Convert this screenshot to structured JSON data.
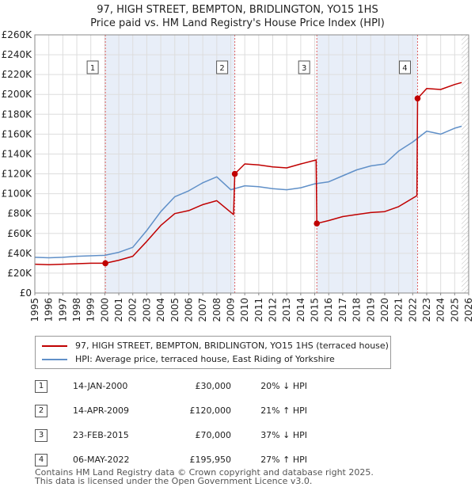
{
  "title_line1": "97, HIGH STREET, BEMPTON, BRIDLINGTON, YO15 1HS",
  "title_line2": "Price paid vs. HM Land Registry's House Price Index (HPI)",
  "chart_data": {
    "type": "line",
    "title": "97, HIGH STREET, BEMPTON, BRIDLINGTON, YO15 1HS — Price paid vs. HM Land Registry's House Price Index (HPI)",
    "xlabel": "",
    "ylabel": "",
    "xlim": [
      1995,
      2026
    ],
    "ylim": [
      0,
      260000
    ],
    "x_ticks": [
      "1995",
      "1996",
      "1997",
      "1998",
      "1999",
      "2000",
      "2001",
      "2002",
      "2003",
      "2004",
      "2005",
      "2006",
      "2007",
      "2008",
      "2009",
      "2010",
      "2011",
      "2012",
      "2013",
      "2014",
      "2015",
      "2016",
      "2017",
      "2018",
      "2019",
      "2020",
      "2021",
      "2022",
      "2023",
      "2024",
      "2025",
      "2026"
    ],
    "y_ticks": [
      {
        "value": 0,
        "label": "£0"
      },
      {
        "value": 20000,
        "label": "£20K"
      },
      {
        "value": 40000,
        "label": "£40K"
      },
      {
        "value": 60000,
        "label": "£60K"
      },
      {
        "value": 80000,
        "label": "£80K"
      },
      {
        "value": 100000,
        "label": "£100K"
      },
      {
        "value": 120000,
        "label": "£120K"
      },
      {
        "value": 140000,
        "label": "£140K"
      },
      {
        "value": 160000,
        "label": "£160K"
      },
      {
        "value": 180000,
        "label": "£180K"
      },
      {
        "value": 200000,
        "label": "£200K"
      },
      {
        "value": 220000,
        "label": "£220K"
      },
      {
        "value": 240000,
        "label": "£240K"
      },
      {
        "value": 260000,
        "label": "£260K"
      }
    ],
    "grid": true,
    "shaded_spans": [
      [
        2000.04,
        2009.29
      ],
      [
        2015.15,
        2022.35
      ]
    ],
    "hatched_from": 2025.5,
    "series": [
      {
        "name": "97, HIGH STREET, BEMPTON, BRIDLINGTON, YO15 1HS (terraced house)",
        "color": "#c00000",
        "x": [
          1995,
          1996,
          1997,
          1998,
          1999,
          2000.04,
          2001,
          2002,
          2003,
          2004,
          2005,
          2006,
          2007,
          2008,
          2009.2,
          2009.29,
          2010,
          2011,
          2012,
          2013,
          2014,
          2015.1,
          2015.15,
          2016,
          2017,
          2018,
          2019,
          2020,
          2021,
          2022.3,
          2022.35,
          2023,
          2024,
          2025,
          2025.5
        ],
        "values": [
          29000,
          28500,
          29000,
          29500,
          30000,
          30000,
          33000,
          37000,
          52000,
          68000,
          80000,
          83000,
          89000,
          93000,
          79000,
          120000,
          130000,
          129000,
          127000,
          126000,
          130000,
          134000,
          70000,
          73000,
          77000,
          79000,
          81000,
          82000,
          87000,
          98000,
          195950,
          206000,
          205000,
          210000,
          212000
        ]
      },
      {
        "name": "HPI: Average price, terraced house, East Riding of Yorkshire",
        "color": "#6090c8",
        "x": [
          1995,
          1996,
          1997,
          1998,
          1999,
          2000,
          2001,
          2002,
          2003,
          2004,
          2005,
          2006,
          2007,
          2008,
          2009,
          2010,
          2011,
          2012,
          2013,
          2014,
          2015,
          2016,
          2017,
          2018,
          2019,
          2020,
          2021,
          2022,
          2023,
          2024,
          2025,
          2025.5
        ],
        "values": [
          36000,
          35500,
          36000,
          37000,
          37500,
          38000,
          41000,
          46000,
          63000,
          82000,
          97000,
          103000,
          111000,
          117000,
          104000,
          108000,
          107000,
          105000,
          104000,
          106000,
          110000,
          112000,
          118000,
          124000,
          128000,
          130000,
          143000,
          152000,
          163000,
          160000,
          166000,
          168000
        ]
      }
    ],
    "markers": [
      {
        "label": "1",
        "x": 2000.04,
        "y": 30000
      },
      {
        "label": "2",
        "x": 2009.29,
        "y": 120000
      },
      {
        "label": "3",
        "x": 2015.15,
        "y": 70000
      },
      {
        "label": "4",
        "x": 2022.35,
        "y": 195950
      }
    ]
  },
  "legend": {
    "items": [
      {
        "label": "97, HIGH STREET, BEMPTON, BRIDLINGTON, YO15 1HS (terraced house)",
        "color": "#c00000"
      },
      {
        "label": "HPI: Average price, terraced house, East Riding of Yorkshire",
        "color": "#6090c8"
      }
    ]
  },
  "sales": [
    {
      "num": "1",
      "date": "14-JAN-2000",
      "price": "£30,000",
      "hpi": "20% ↓ HPI"
    },
    {
      "num": "2",
      "date": "14-APR-2009",
      "price": "£120,000",
      "hpi": "21% ↑ HPI"
    },
    {
      "num": "3",
      "date": "23-FEB-2015",
      "price": "£70,000",
      "hpi": "37% ↓ HPI"
    },
    {
      "num": "4",
      "date": "06-MAY-2022",
      "price": "£195,950",
      "hpi": "27% ↑ HPI"
    }
  ],
  "footer_line1": "Contains HM Land Registry data © Crown copyright and database right 2025.",
  "footer_line2": "This data is licensed under the Open Government Licence v3.0."
}
